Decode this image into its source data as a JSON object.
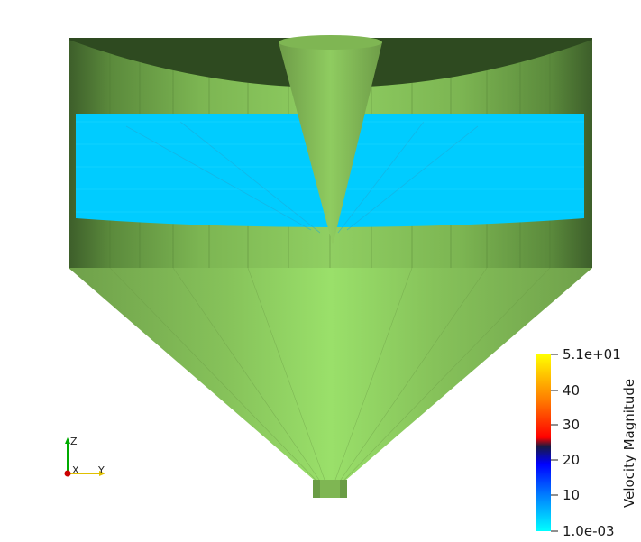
{
  "scene": {
    "geometry_color": "#8bd45a",
    "geometry_dark": "#2f4a22",
    "glyph_color": "#00ccff"
  },
  "colorbar": {
    "title": "Velocity Magnitude",
    "max_label": "5.1e+01",
    "min_label": "1.0e-03",
    "tick_labels": [
      "40",
      "30",
      "20",
      "10"
    ],
    "colors": {
      "top": "#ffff00",
      "orange": "#ff8000",
      "red": "#ff0000",
      "dark": "#1a1a40",
      "blue": "#0000ff",
      "light_blue": "#0080ff",
      "bottom": "#00ffff"
    }
  },
  "orientation_axes": {
    "x_label": "X",
    "y_label": "Y",
    "z_label": "Z",
    "x_color": "#cc0000",
    "y_color": "#e0c000",
    "z_color": "#00aa00"
  }
}
